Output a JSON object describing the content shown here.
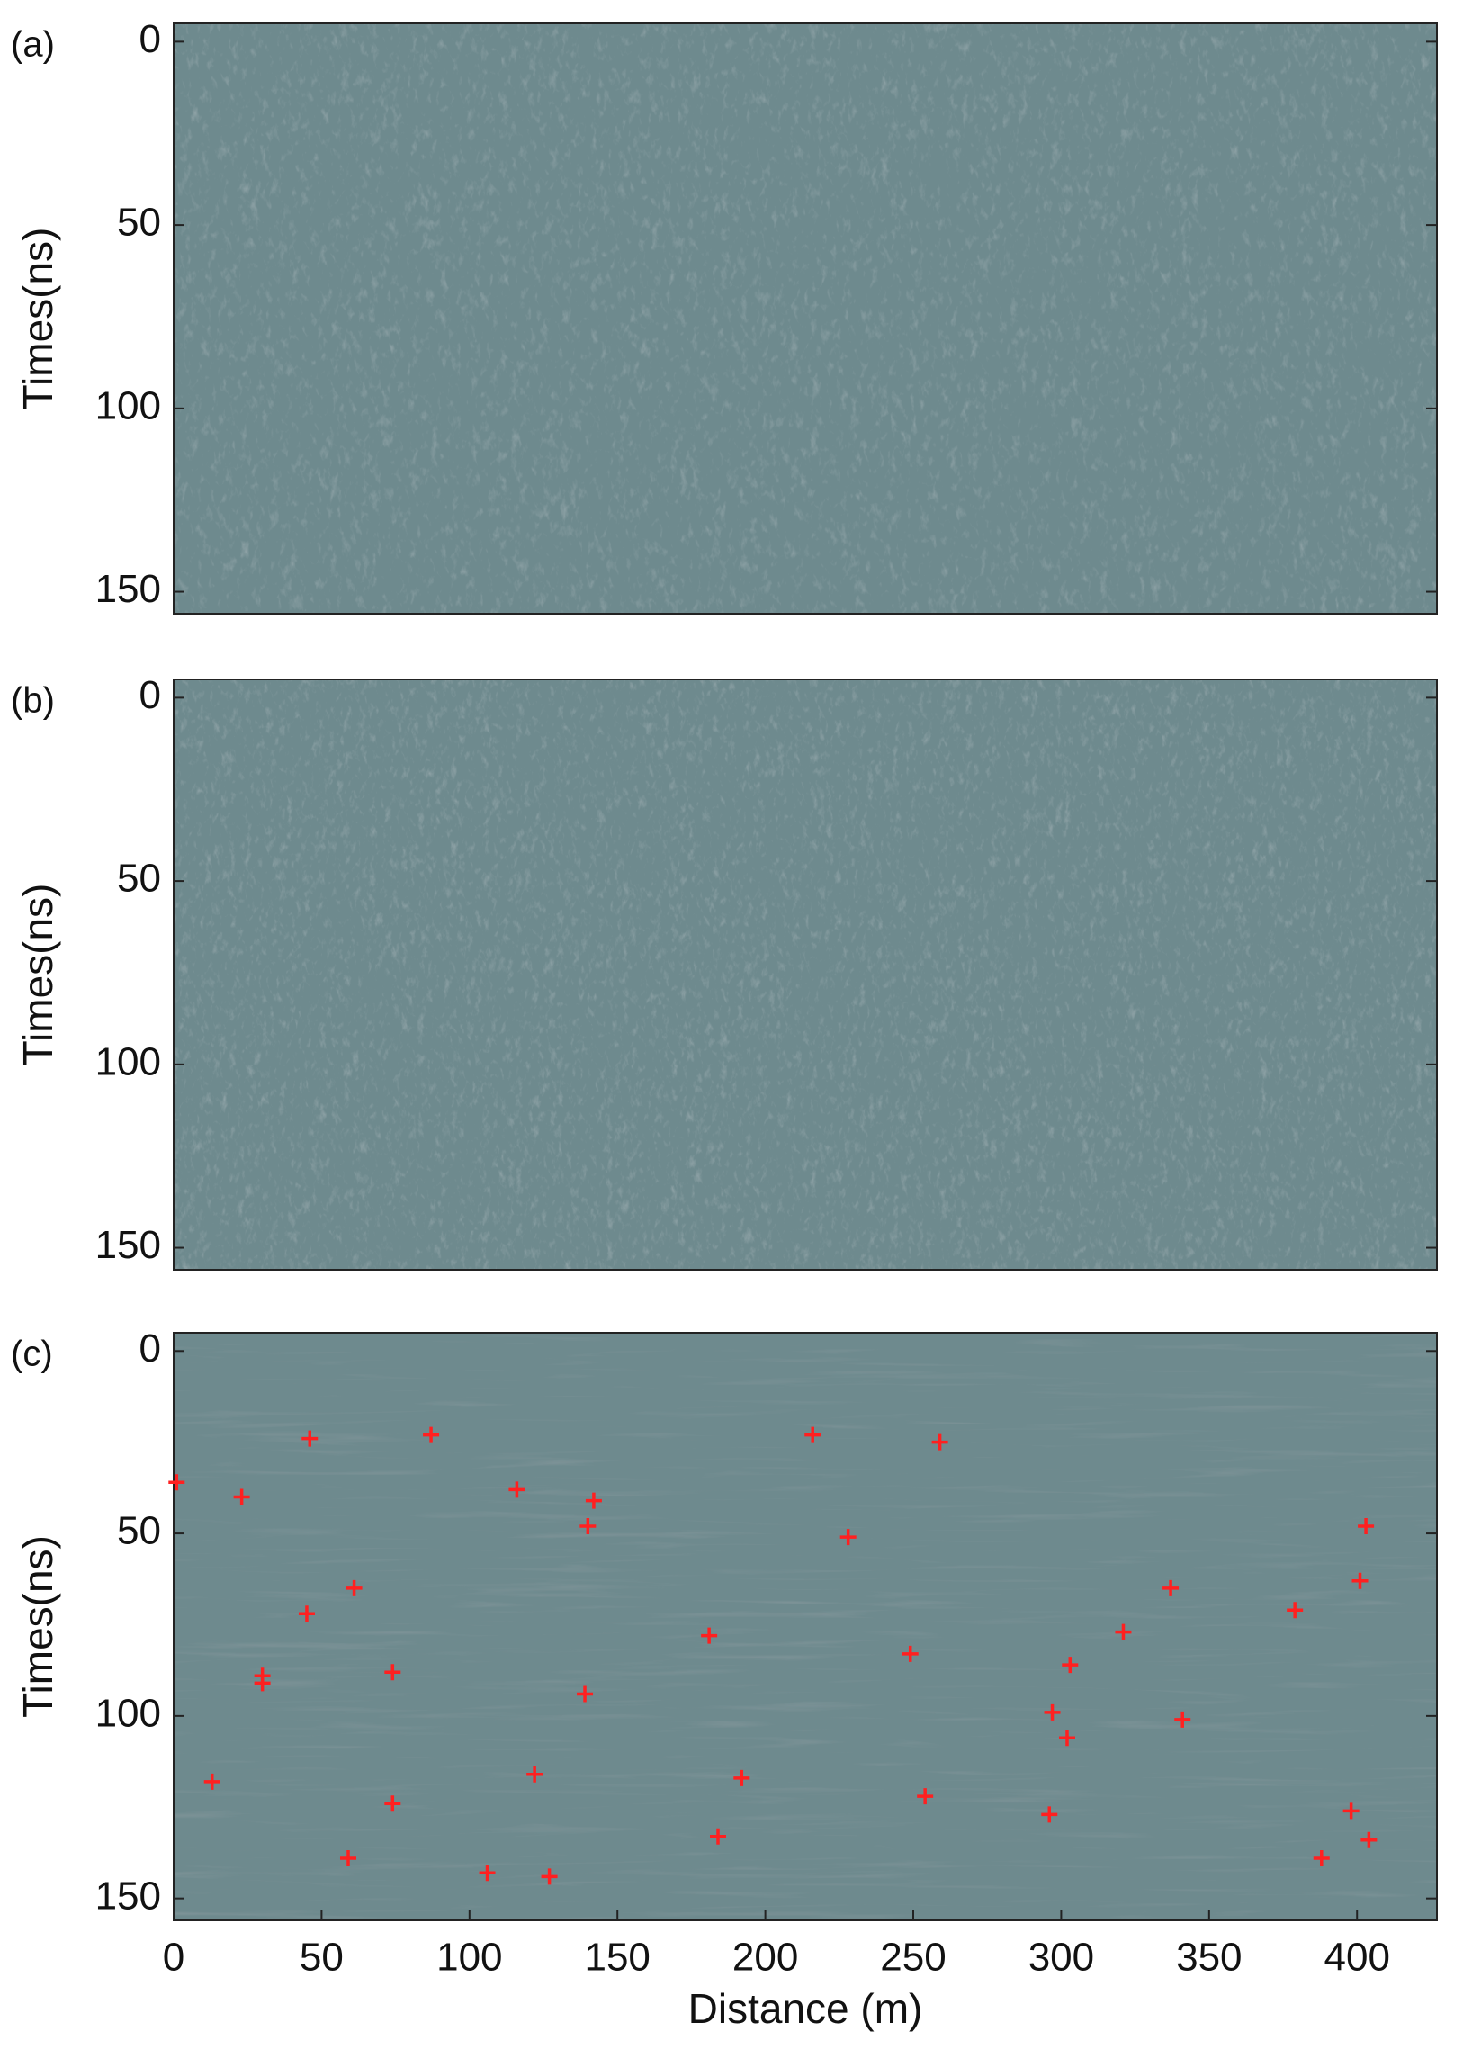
{
  "chart_data": [
    {
      "type": "image",
      "panel_label": "(a)",
      "ylabel": "Times(ns)",
      "ylim": [
        -5,
        156
      ],
      "yticks": [
        0,
        50,
        100,
        150
      ],
      "xlim": [
        0,
        427
      ],
      "style": "raw"
    },
    {
      "type": "image",
      "panel_label": "(b)",
      "ylabel": "Times(ns)",
      "ylim": [
        -5,
        156
      ],
      "yticks": [
        0,
        50,
        100,
        150
      ],
      "xlim": [
        0,
        427
      ],
      "style": "filtered"
    },
    {
      "type": "scatter",
      "panel_label": "(c)",
      "ylabel": "Times(ns)",
      "xlabel": "Distance (m)",
      "ylim": [
        -5,
        156
      ],
      "yticks": [
        0,
        50,
        100,
        150
      ],
      "xlim": [
        0,
        427
      ],
      "xticks": [
        0,
        50,
        100,
        150,
        200,
        250,
        300,
        350,
        400
      ],
      "color": "#ff2020",
      "style": "layered",
      "x": [
        1,
        23,
        46,
        87,
        116,
        142,
        140,
        216,
        259,
        228,
        403,
        401,
        61,
        45,
        379,
        337,
        321,
        181,
        249,
        303,
        30,
        30,
        74,
        139,
        297,
        341,
        302,
        13,
        122,
        192,
        74,
        254,
        296,
        398,
        184,
        404,
        59,
        388,
        106,
        127
      ],
      "y": [
        36,
        40,
        24,
        23,
        38,
        41,
        48,
        23,
        25,
        51,
        48,
        63,
        65,
        72,
        71,
        65,
        77,
        78,
        83,
        86,
        89,
        91,
        88,
        94,
        99,
        101,
        106,
        118,
        116,
        117,
        124,
        122,
        127,
        126,
        133,
        134,
        139,
        139,
        143,
        144
      ]
    }
  ]
}
